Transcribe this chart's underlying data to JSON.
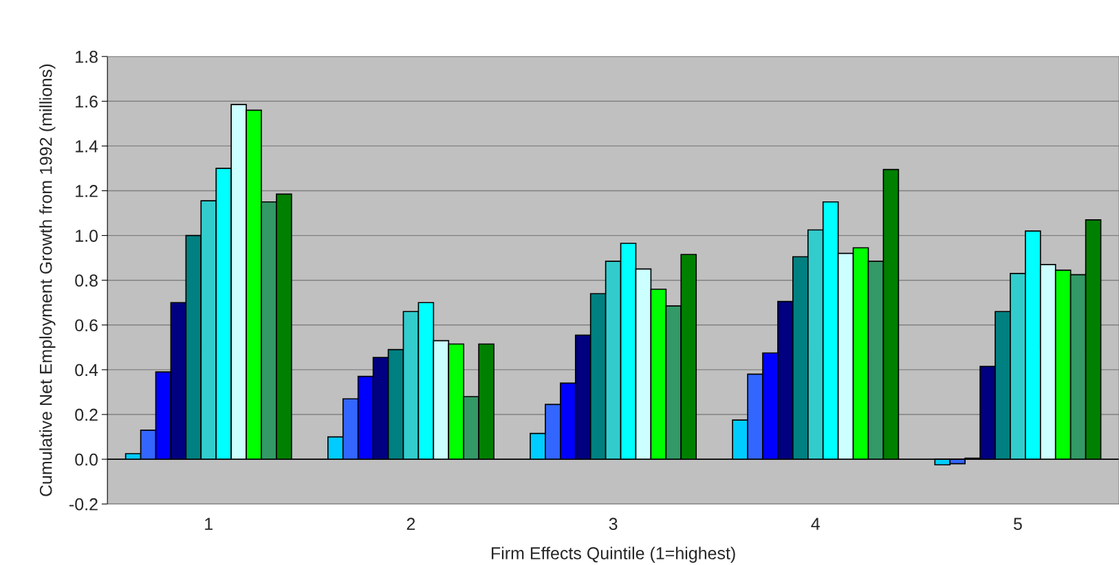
{
  "chart_data": {
    "type": "bar",
    "xlabel": "Firm Effects Quintile (1=highest)",
    "ylabel": "Cumulative Net Employment Growth from 1992 (millions)",
    "categories": [
      "1",
      "2",
      "3",
      "4",
      "5"
    ],
    "series": [
      {
        "color": "#00ccff",
        "values": [
          0.025,
          0.1,
          0.115,
          0.175,
          -0.025
        ]
      },
      {
        "color": "#3366ff",
        "values": [
          0.13,
          0.27,
          0.245,
          0.38,
          -0.02
        ]
      },
      {
        "color": "#0000ff",
        "values": [
          0.39,
          0.37,
          0.34,
          0.475,
          0.005
        ]
      },
      {
        "color": "#000080",
        "values": [
          0.7,
          0.455,
          0.555,
          0.705,
          0.415
        ]
      },
      {
        "color": "#008080",
        "values": [
          1.0,
          0.49,
          0.74,
          0.905,
          0.66
        ]
      },
      {
        "color": "#33cccc",
        "values": [
          1.155,
          0.66,
          0.885,
          1.025,
          0.83
        ]
      },
      {
        "color": "#00ffff",
        "values": [
          1.3,
          0.7,
          0.965,
          1.15,
          1.02
        ]
      },
      {
        "color": "#ccffff",
        "values": [
          1.585,
          0.53,
          0.85,
          0.92,
          0.87
        ]
      },
      {
        "color": "#00ff00",
        "values": [
          1.56,
          0.515,
          0.76,
          0.945,
          0.845
        ]
      },
      {
        "color": "#339966",
        "values": [
          1.15,
          0.28,
          0.685,
          0.885,
          0.825
        ]
      },
      {
        "color": "#008000",
        "values": [
          1.185,
          0.515,
          0.915,
          1.295,
          1.07
        ]
      }
    ],
    "ylim": [
      -0.2,
      1.8
    ],
    "yticks": [
      {
        "value": -0.2,
        "label": "-0.2"
      },
      {
        "value": 0,
        "label": "0.0"
      },
      {
        "value": 0.2,
        "label": "0.2"
      },
      {
        "value": 0.4,
        "label": "0.4"
      },
      {
        "value": 0.6,
        "label": "0.6"
      },
      {
        "value": 0.8,
        "label": "0.8"
      },
      {
        "value": 1.0,
        "label": "1.0"
      },
      {
        "value": 1.2,
        "label": "1.2"
      },
      {
        "value": 1.4,
        "label": "1.4"
      },
      {
        "value": 1.6,
        "label": "1.6"
      },
      {
        "value": 1.8,
        "label": "1.8"
      }
    ],
    "grid": "y"
  }
}
